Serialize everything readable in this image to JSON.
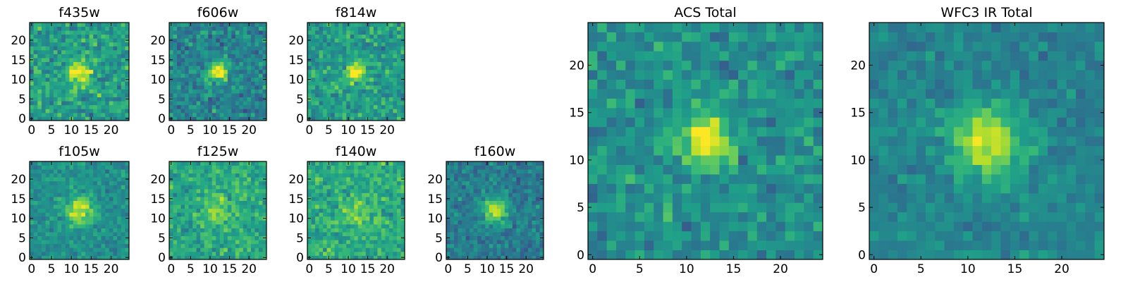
{
  "chart_data": [
    {
      "type": "heatmap",
      "title": "f435w",
      "xticks": [
        0,
        5,
        10,
        15,
        20
      ],
      "yticks": [
        0,
        5,
        10,
        15,
        20
      ],
      "xlim": [
        -0.5,
        24.5
      ],
      "ylim": [
        -0.5,
        24.5
      ],
      "grid_size": 25,
      "colormap": "viridis",
      "seed": 11,
      "blob_center": [
        12,
        12
      ],
      "blob_sigma": 2.2,
      "blob_amplitude": 0.45,
      "noise": 0.55,
      "base": 0.55
    },
    {
      "type": "heatmap",
      "title": "f606w",
      "xticks": [
        0,
        5,
        10,
        15,
        20
      ],
      "yticks": [
        0,
        5,
        10,
        15,
        20
      ],
      "xlim": [
        -0.5,
        24.5
      ],
      "ylim": [
        -0.5,
        24.5
      ],
      "grid_size": 25,
      "colormap": "viridis",
      "seed": 23,
      "blob_center": [
        12,
        12
      ],
      "blob_sigma": 1.8,
      "blob_amplitude": 0.55,
      "noise": 0.5,
      "base": 0.45
    },
    {
      "type": "heatmap",
      "title": "f814w",
      "xticks": [
        0,
        5,
        10,
        15,
        20
      ],
      "yticks": [
        0,
        5,
        10,
        15,
        20
      ],
      "xlim": [
        -0.5,
        24.5
      ],
      "ylim": [
        -0.5,
        24.5
      ],
      "grid_size": 25,
      "colormap": "viridis",
      "seed": 37,
      "blob_center": [
        12,
        12
      ],
      "blob_sigma": 1.8,
      "blob_amplitude": 0.45,
      "noise": 0.5,
      "base": 0.55
    },
    {
      "type": "heatmap",
      "title": "f105w",
      "xticks": [
        0,
        5,
        10,
        15,
        20
      ],
      "yticks": [
        0,
        5,
        10,
        15,
        20
      ],
      "xlim": [
        -0.5,
        24.5
      ],
      "ylim": [
        -0.5,
        24.5
      ],
      "grid_size": 25,
      "colormap": "viridis",
      "seed": 41,
      "blob_center": [
        12,
        12
      ],
      "blob_sigma": 2.4,
      "blob_amplitude": 0.45,
      "noise": 0.35,
      "base": 0.5
    },
    {
      "type": "heatmap",
      "title": "f125w",
      "xticks": [
        0,
        5,
        10,
        15,
        20
      ],
      "yticks": [
        0,
        5,
        10,
        15,
        20
      ],
      "xlim": [
        -0.5,
        24.5
      ],
      "ylim": [
        -0.5,
        24.5
      ],
      "grid_size": 25,
      "colormap": "viridis",
      "seed": 53,
      "blob_center": [
        12,
        12
      ],
      "blob_sigma": 2.4,
      "blob_amplitude": 0.25,
      "noise": 0.45,
      "base": 0.6
    },
    {
      "type": "heatmap",
      "title": "f140w",
      "xticks": [
        0,
        5,
        10,
        15,
        20
      ],
      "yticks": [
        0,
        5,
        10,
        15,
        20
      ],
      "xlim": [
        -0.5,
        24.5
      ],
      "ylim": [
        -0.5,
        24.5
      ],
      "grid_size": 25,
      "colormap": "viridis",
      "seed": 67,
      "blob_center": [
        12,
        12
      ],
      "blob_sigma": 2.4,
      "blob_amplitude": 0.2,
      "noise": 0.45,
      "base": 0.62
    },
    {
      "type": "heatmap",
      "title": "f160w",
      "xticks": [
        0,
        5,
        10,
        15,
        20
      ],
      "yticks": [
        0,
        5,
        10,
        15,
        20
      ],
      "xlim": [
        -0.5,
        24.5
      ],
      "ylim": [
        -0.5,
        24.5
      ],
      "grid_size": 25,
      "colormap": "viridis",
      "seed": 79,
      "blob_center": [
        12,
        12
      ],
      "blob_sigma": 2.2,
      "blob_amplitude": 0.5,
      "noise": 0.4,
      "base": 0.42
    },
    {
      "type": "heatmap",
      "title": "ACS Total",
      "xticks": [
        0,
        5,
        10,
        15,
        20
      ],
      "yticks": [
        0,
        5,
        10,
        15,
        20
      ],
      "xlim": [
        -0.5,
        24.5
      ],
      "ylim": [
        -0.5,
        24.5
      ],
      "grid_size": 25,
      "colormap": "viridis",
      "seed": 91,
      "blob_center": [
        12,
        12
      ],
      "blob_sigma": 2.0,
      "blob_amplitude": 0.5,
      "noise": 0.45,
      "base": 0.5
    },
    {
      "type": "heatmap",
      "title": "WFC3 IR Total",
      "xticks": [
        0,
        5,
        10,
        15,
        20
      ],
      "yticks": [
        0,
        5,
        10,
        15,
        20
      ],
      "xlim": [
        -0.5,
        24.5
      ],
      "ylim": [
        -0.5,
        24.5
      ],
      "grid_size": 25,
      "colormap": "viridis",
      "seed": 103,
      "blob_center": [
        12,
        12
      ],
      "blob_sigma": 2.6,
      "blob_amplitude": 0.5,
      "noise": 0.3,
      "base": 0.45
    }
  ]
}
